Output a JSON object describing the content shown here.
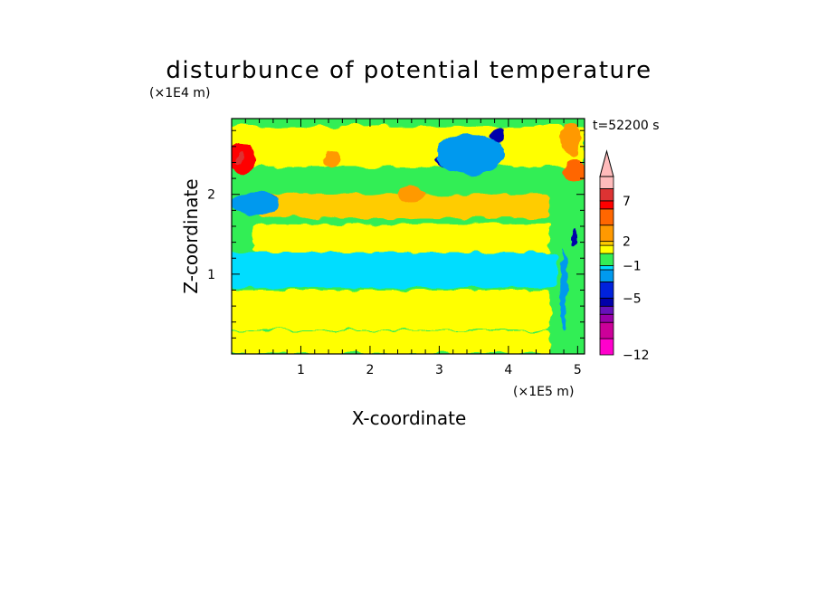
{
  "chart_data": {
    "type": "heatmap",
    "title": "disturbunce of potential temperature",
    "xlabel": "X-coordinate",
    "ylabel": "Z-coordinate",
    "x_unit": "(×1E5 m)",
    "y_unit": "(×1E4 m)",
    "time_label": "t=52200 s",
    "xlim": [
      0,
      5.1
    ],
    "ylim": [
      0,
      2.95
    ],
    "x_ticks": [
      1,
      2,
      3,
      4,
      5
    ],
    "y_ticks": [
      1,
      2
    ],
    "colorbar": {
      "levels": [
        -12,
        -11,
        -10,
        -9,
        -8,
        -7,
        -6,
        -5,
        -4,
        -3,
        -2,
        -1,
        0,
        1,
        2,
        3,
        4,
        5,
        6,
        7,
        8,
        9,
        10
      ],
      "labels": [
        "−12",
        "−5",
        "−1",
        "2",
        "7"
      ],
      "label_values": [
        -12,
        -5,
        -1,
        2,
        7
      ],
      "bands": [
        {
          "from": -12,
          "to": -10,
          "color": "#ff00cc"
        },
        {
          "from": -10,
          "to": -8,
          "color": "#cc0099"
        },
        {
          "from": -8,
          "to": -7,
          "color": "#9900aa"
        },
        {
          "from": -7,
          "to": -6,
          "color": "#6611bb"
        },
        {
          "from": -6,
          "to": -5,
          "color": "#0000aa"
        },
        {
          "from": -5,
          "to": -3,
          "color": "#0022dd"
        },
        {
          "from": -3,
          "to": -1.5,
          "color": "#0099ee"
        },
        {
          "from": -1.5,
          "to": -1,
          "color": "#00ddff"
        },
        {
          "from": -1,
          "to": 0.5,
          "color": "#33ee55"
        },
        {
          "from": 0.5,
          "to": 1.5,
          "color": "#ffff00"
        },
        {
          "from": 1.5,
          "to": 2,
          "color": "#ffcc00"
        },
        {
          "from": 2,
          "to": 4,
          "color": "#ff9900"
        },
        {
          "from": 4,
          "to": 6,
          "color": "#ff6600"
        },
        {
          "from": 6,
          "to": 7,
          "color": "#ff0000"
        },
        {
          "from": 7,
          "to": 8.5,
          "color": "#dd3333"
        },
        {
          "from": 8.5,
          "to": 10,
          "color": "#ffbbbb"
        }
      ]
    },
    "features": [
      {
        "kind": "background",
        "value": 0
      },
      {
        "kind": "band",
        "z_center": 2.6,
        "z_halfwidth": 0.25,
        "value": 1,
        "x_range": [
          0,
          5.1
        ]
      },
      {
        "kind": "band",
        "z_center": 1.85,
        "z_halfwidth": 0.15,
        "value": 1.8,
        "x_range": [
          0.4,
          4.6
        ]
      },
      {
        "kind": "band",
        "z_center": 1.45,
        "z_halfwidth": 0.18,
        "value": 1,
        "x_range": [
          0.3,
          4.6
        ]
      },
      {
        "kind": "band",
        "z_center": 1.05,
        "z_halfwidth": 0.22,
        "value": -1.2,
        "x_range": [
          0,
          4.7
        ]
      },
      {
        "kind": "band",
        "z_center": 0.55,
        "z_halfwidth": 0.25,
        "value": 1.1,
        "x_range": [
          0,
          4.6
        ]
      },
      {
        "kind": "band",
        "z_center": 0.15,
        "z_halfwidth": 0.14,
        "value": 1,
        "x_range": [
          0,
          4.6
        ]
      },
      {
        "kind": "blob",
        "x": 0.15,
        "z": 2.45,
        "rx": 0.2,
        "rz": 0.18,
        "value": 6
      },
      {
        "kind": "blob",
        "x": 0.12,
        "z": 2.45,
        "rx": 0.06,
        "rz": 0.07,
        "value": 8
      },
      {
        "kind": "blob",
        "x": 1.45,
        "z": 2.45,
        "rx": 0.12,
        "rz": 0.12,
        "value": 3
      },
      {
        "kind": "blob",
        "x": 2.6,
        "z": 2.0,
        "rx": 0.2,
        "rz": 0.1,
        "value": 3
      },
      {
        "kind": "blob",
        "x": 3.15,
        "z": 2.45,
        "rx": 0.22,
        "rz": 0.12,
        "value": -6
      },
      {
        "kind": "blob",
        "x": 3.6,
        "z": 2.55,
        "rx": 0.2,
        "rz": 0.14,
        "value": -6
      },
      {
        "kind": "blob",
        "x": 3.85,
        "z": 2.75,
        "rx": 0.1,
        "rz": 0.1,
        "value": -6
      },
      {
        "kind": "blob",
        "x": 3.45,
        "z": 2.5,
        "rx": 0.5,
        "rz": 0.25,
        "value": -2
      },
      {
        "kind": "blob",
        "x": 0.15,
        "z": 1.85,
        "rx": 0.12,
        "rz": 0.07,
        "value": -6
      },
      {
        "kind": "blob",
        "x": 0.5,
        "z": 1.9,
        "rx": 0.17,
        "rz": 0.1,
        "value": -6
      },
      {
        "kind": "blob",
        "x": 0.35,
        "z": 1.88,
        "rx": 0.35,
        "rz": 0.14,
        "value": -2
      },
      {
        "kind": "blob",
        "x": 4.95,
        "z": 2.3,
        "rx": 0.15,
        "rz": 0.15,
        "value": 4
      },
      {
        "kind": "blob",
        "x": 4.95,
        "z": 1.45,
        "rx": 0.04,
        "rz": 0.12,
        "value": -6
      },
      {
        "kind": "blob",
        "x": 4.8,
        "z": 0.8,
        "rx": 0.05,
        "rz": 0.5,
        "value": -3
      },
      {
        "kind": "blob",
        "x": 4.9,
        "z": 2.7,
        "rx": 0.15,
        "rz": 0.2,
        "value": 2
      }
    ]
  }
}
